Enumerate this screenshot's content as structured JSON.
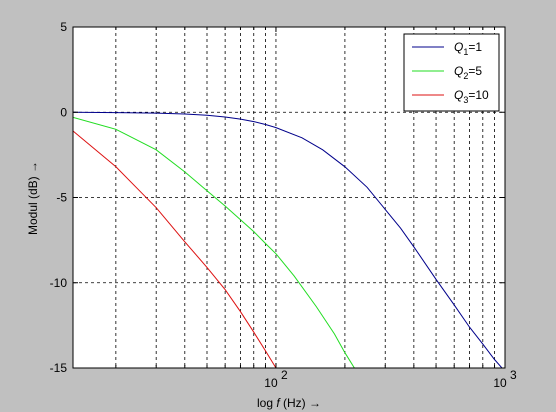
{
  "chart_data": {
    "type": "line",
    "xscale": "log",
    "xlim": [
      13,
      1000
    ],
    "ylim": [
      -15,
      5
    ],
    "grid": true,
    "legend_position": "top-right",
    "xlabel": {
      "prefix": "log ",
      "var": "f",
      "suffix": " (Hz) →"
    },
    "ylabel": "Modul (dB) →",
    "yticks": [
      5,
      0,
      -5,
      -10,
      -15
    ],
    "xticks": [
      {
        "value": 100,
        "base": "10",
        "exp": "2"
      },
      {
        "value": 1000,
        "base": "10",
        "exp": "3"
      }
    ],
    "series": [
      {
        "label": {
          "sym": "Q",
          "sub": "1",
          "rest": "=1"
        },
        "color": "#00008b",
        "x": [
          13,
          20,
          30,
          40,
          50,
          60,
          70,
          80,
          90,
          100,
          130,
          160,
          200,
          250,
          300,
          350,
          400,
          500,
          600,
          700,
          800,
          900,
          1000
        ],
        "y": [
          0,
          -0.02,
          -0.05,
          -0.1,
          -0.18,
          -0.28,
          -0.4,
          -0.55,
          -0.72,
          -0.9,
          -1.5,
          -2.2,
          -3.2,
          -4.4,
          -5.7,
          -6.8,
          -7.9,
          -9.8,
          -11.3,
          -12.6,
          -13.6,
          -14.5,
          -15.2
        ]
      },
      {
        "label": {
          "sym": "Q",
          "sub": "2",
          "rest": "=5"
        },
        "color": "#22dd22",
        "x": [
          13,
          20,
          30,
          40,
          50,
          60,
          70,
          80,
          90,
          100,
          120,
          150,
          180,
          200,
          220
        ],
        "y": [
          -0.3,
          -1.0,
          -2.2,
          -3.5,
          -4.6,
          -5.5,
          -6.3,
          -7.0,
          -7.7,
          -8.3,
          -9.6,
          -11.4,
          -13.0,
          -14.1,
          -15.0
        ]
      },
      {
        "label": {
          "sym": "Q",
          "sub": "3",
          "rest": "=10"
        },
        "color": "#dd1111",
        "x": [
          13,
          20,
          30,
          40,
          50,
          60,
          70,
          80,
          90,
          100
        ],
        "y": [
          -1.1,
          -3.2,
          -5.6,
          -7.6,
          -9.1,
          -10.4,
          -11.7,
          -12.9,
          -14.0,
          -15.0
        ]
      }
    ]
  }
}
